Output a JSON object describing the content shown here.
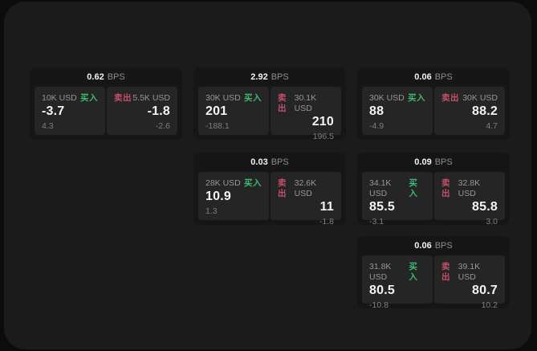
{
  "labels": {
    "bps_unit": "BPS",
    "buy": "买入",
    "sell": "卖出"
  },
  "colors": {
    "buy_green": "#3eb96f",
    "sell_red": "#c4506a",
    "outer_bg": "#0c0c0c",
    "panel_bg": "#1b1b1b",
    "card_bg": "#161616",
    "tile_bg": "#252525"
  },
  "cards": [
    {
      "bps": "0.62",
      "buy": {
        "size": "10K USD",
        "value": "-3.7",
        "delta": "4.3"
      },
      "sell": {
        "size": "5.5K USD",
        "value": "-1.8",
        "delta": "-2.6"
      }
    },
    {
      "bps": "2.92",
      "buy": {
        "size": "30K USD",
        "value": "201",
        "delta": "-188.1"
      },
      "sell": {
        "size": "30.1K USD",
        "value": "210",
        "delta": "196.5"
      }
    },
    {
      "bps": "0.06",
      "buy": {
        "size": "30K USD",
        "value": "88",
        "delta": "-4.9"
      },
      "sell": {
        "size": "30K USD",
        "value": "88.2",
        "delta": "4.7"
      }
    },
    {
      "bps": "0.03",
      "buy": {
        "size": "28K USD",
        "value": "10.9",
        "delta": "1.3"
      },
      "sell": {
        "size": "32.6K USD",
        "value": "11",
        "delta": "-1.8"
      }
    },
    {
      "bps": "0.09",
      "buy": {
        "size": "34.1K USD",
        "value": "85.5",
        "delta": "-3.1"
      },
      "sell": {
        "size": "32.8K USD",
        "value": "85.8",
        "delta": "3.0"
      }
    },
    {
      "bps": "0.06",
      "buy": {
        "size": "31.8K USD",
        "value": "80.5",
        "delta": "-10.8"
      },
      "sell": {
        "size": "39.1K USD",
        "value": "80.7",
        "delta": "10.2"
      }
    }
  ]
}
